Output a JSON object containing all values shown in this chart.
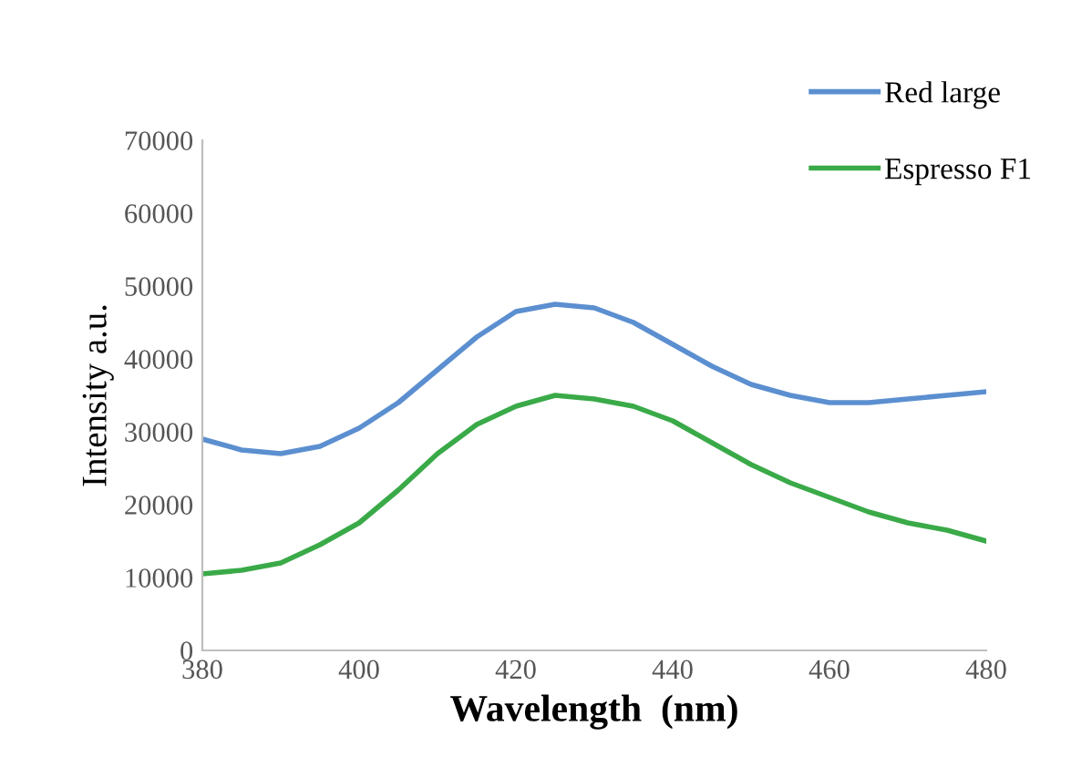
{
  "chart_data": {
    "type": "line",
    "xlabel": "Wavelength  (nm)",
    "ylabel": "Intensity a.u.",
    "x": [
      380,
      385,
      390,
      395,
      400,
      405,
      410,
      415,
      420,
      425,
      430,
      435,
      440,
      445,
      450,
      455,
      460,
      465,
      470,
      475,
      480
    ],
    "series": [
      {
        "name": "Red large",
        "color": "#5b8fd0",
        "values": [
          29000,
          27500,
          27000,
          28000,
          30500,
          34000,
          38500,
          43000,
          46500,
          47500,
          47000,
          45000,
          42000,
          39000,
          36500,
          35000,
          34000,
          34000,
          34500,
          35000,
          35500
        ]
      },
      {
        "name": "Espresso F1",
        "color": "#3aaa48",
        "values": [
          10500,
          11000,
          12000,
          14500,
          17500,
          22000,
          27000,
          31000,
          33500,
          35000,
          34500,
          33500,
          31500,
          28500,
          25500,
          23000,
          21000,
          19000,
          17500,
          16500,
          15000
        ]
      }
    ],
    "xlim": [
      380,
      480
    ],
    "xticks": [
      380,
      400,
      420,
      440,
      460,
      480
    ],
    "ylim": [
      0,
      70000
    ],
    "yticks": [
      0,
      10000,
      20000,
      30000,
      40000,
      50000,
      60000,
      70000
    ],
    "grid": false,
    "legend": "top right",
    "marker": "none",
    "line_style": "solid"
  }
}
